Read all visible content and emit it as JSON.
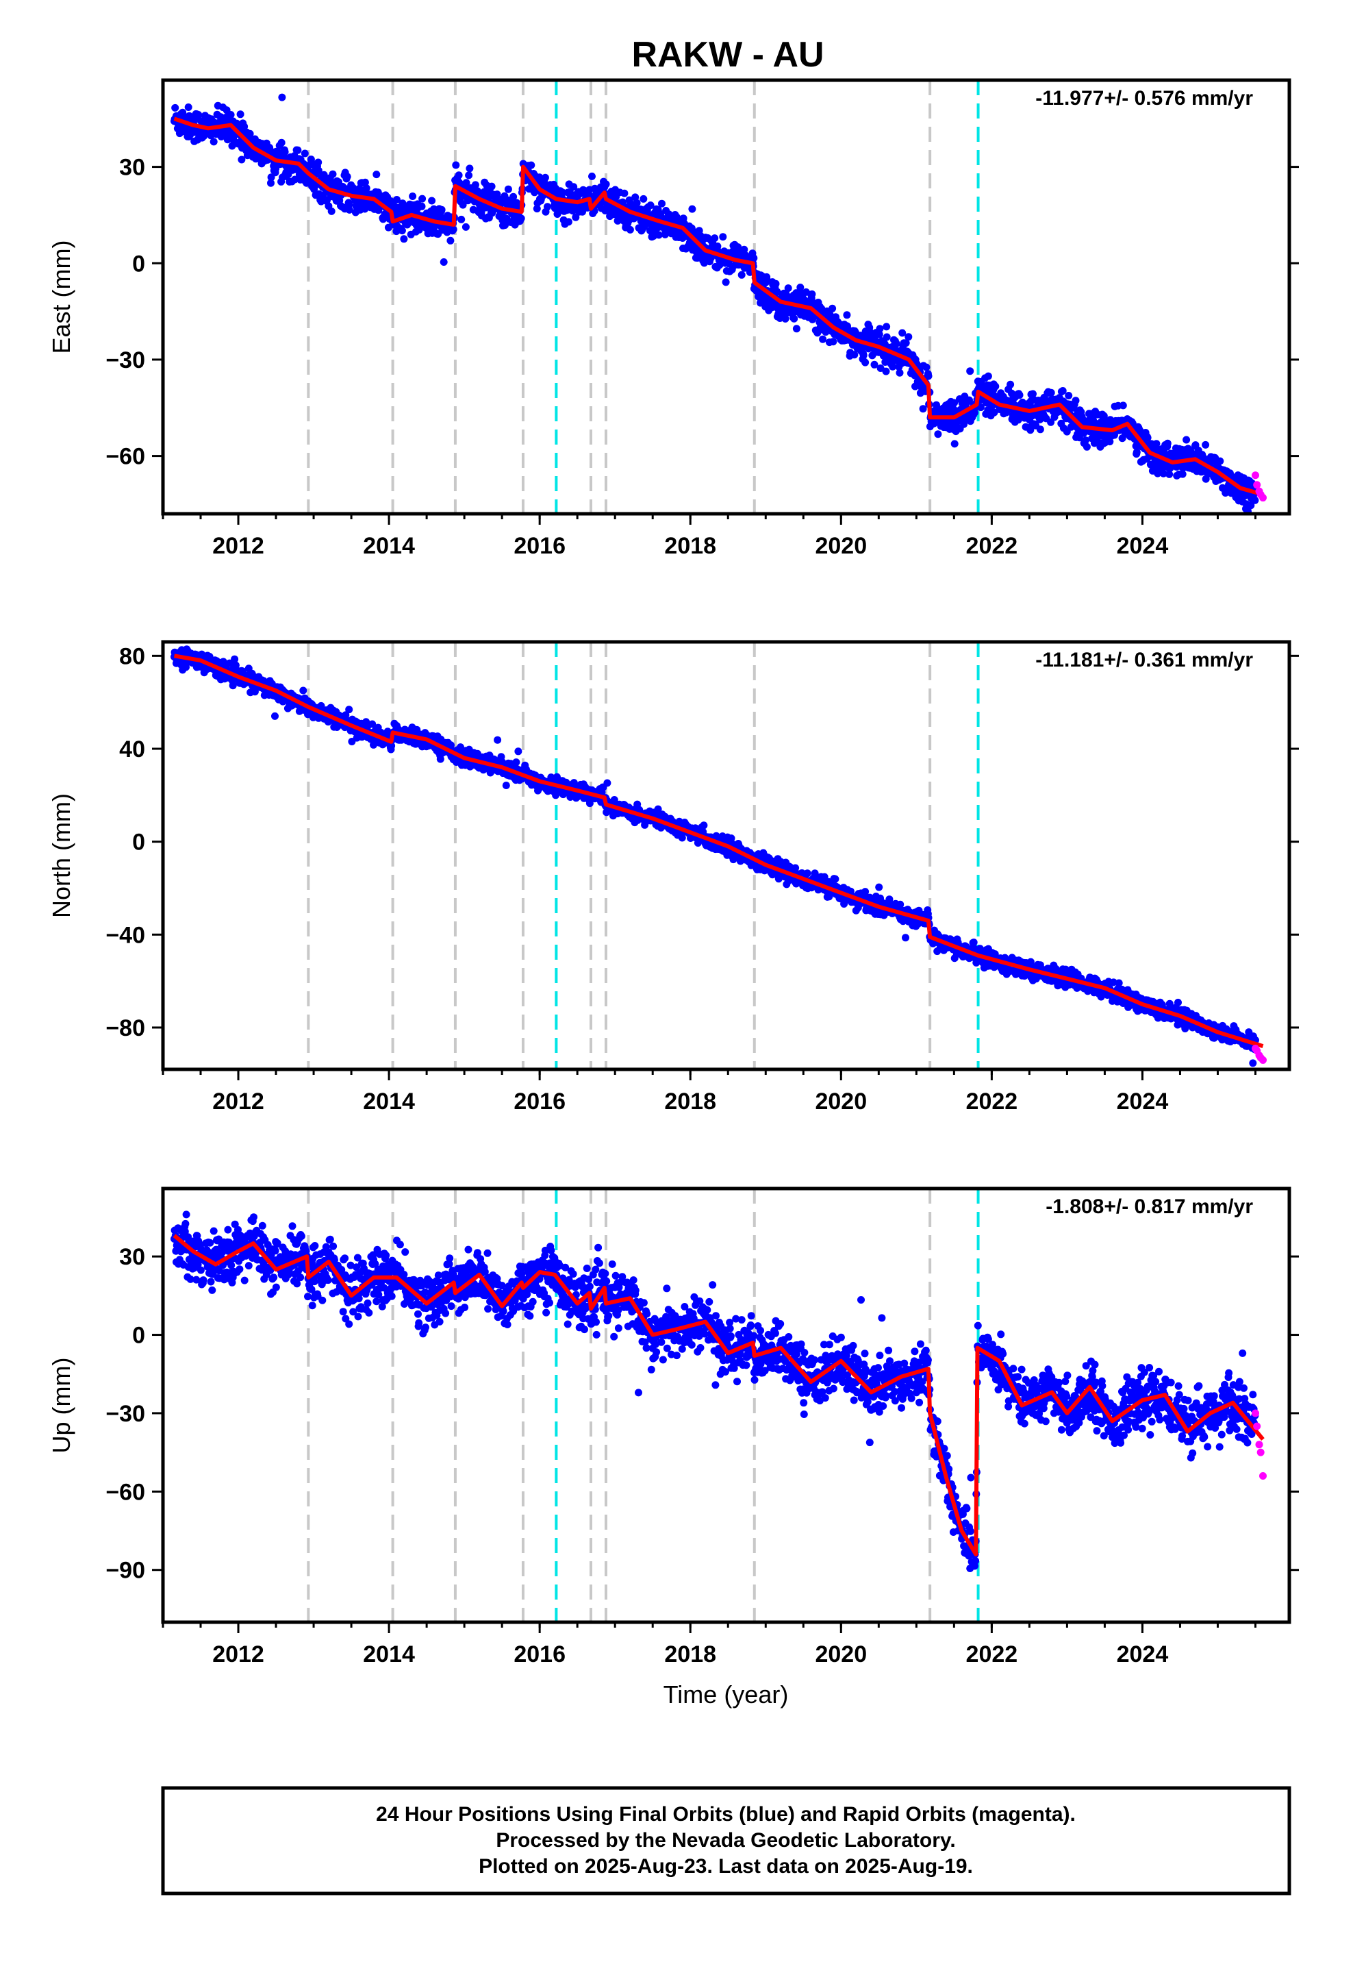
{
  "title": "RAKW - AU",
  "x_axis_label": "Time (year)",
  "footer": {
    "line1": "24 Hour Positions Using Final Orbits (blue) and Rapid Orbits (magenta).",
    "line2": "Processed by the Nevada Geodetic Laboratory.",
    "line3": "Plotted on 2025-Aug-23. Last data on 2025-Aug-19."
  },
  "colors": {
    "final_orbits": "#0000ff",
    "rapid_orbits": "#ff00ff",
    "model_fit": "#ff0000",
    "equipment_change": "#c8c8c8",
    "earthquake": "#00e5e5"
  },
  "chart_data": [
    {
      "type": "scatter",
      "ylabel": "East (mm)",
      "rate_label": "-11.977+/- 0.576 mm/yr",
      "xlim": [
        2011.0,
        2025.95
      ],
      "ylim": [
        -78,
        57
      ],
      "yticks": [
        -60,
        -30,
        0,
        30
      ],
      "xticks": [
        2012,
        2014,
        2016,
        2018,
        2020,
        2022,
        2024
      ],
      "x_minor_step": 0.5,
      "equipment_change_lines": [
        2012.93,
        2014.05,
        2014.88,
        2015.78,
        2016.68,
        2016.88,
        2018.85,
        2021.18
      ],
      "earthquake_lines": [
        2016.22,
        2021.82
      ],
      "model": {
        "x": [
          2011.15,
          2011.4,
          2011.6,
          2011.9,
          2012.2,
          2012.5,
          2012.8,
          2012.93,
          2013.2,
          2013.5,
          2013.8,
          2014.03,
          2014.05,
          2014.3,
          2014.6,
          2014.86,
          2014.88,
          2015.2,
          2015.5,
          2015.76,
          2015.78,
          2016.0,
          2016.22,
          2016.5,
          2016.66,
          2016.68,
          2016.86,
          2016.88,
          2017.2,
          2017.6,
          2017.9,
          2018.2,
          2018.6,
          2018.83,
          2018.85,
          2019.2,
          2019.6,
          2019.9,
          2020.2,
          2020.5,
          2020.9,
          2021.16,
          2021.18,
          2021.5,
          2021.8,
          2021.82,
          2022.1,
          2022.5,
          2022.9,
          2023.2,
          2023.6,
          2023.8,
          2024.1,
          2024.4,
          2024.7,
          2025.0,
          2025.3,
          2025.6
        ],
        "y": [
          45,
          43,
          42,
          43,
          36,
          32,
          31,
          28,
          23,
          21,
          20,
          16,
          13,
          15,
          13,
          12,
          24,
          20,
          17,
          16,
          30,
          23,
          20,
          19,
          20,
          17,
          22,
          20,
          16,
          13,
          11,
          4,
          1,
          0,
          -6,
          -12,
          -14,
          -20,
          -24,
          -26,
          -30,
          -38,
          -48,
          -48,
          -44,
          -40,
          -44,
          -46,
          -44,
          -51,
          -52,
          -50,
          -59,
          -62,
          -61,
          -65,
          -70,
          -72
        ]
      },
      "scatter_noise": 2.5,
      "rapid": {
        "x": [
          2025.5,
          2025.52,
          2025.55,
          2025.57,
          2025.6
        ],
        "y": [
          -66,
          -69,
          -71,
          -72,
          -73
        ]
      }
    },
    {
      "type": "scatter",
      "ylabel": "North (mm)",
      "rate_label": "-11.181+/- 0.361 mm/yr",
      "xlim": [
        2011.0,
        2025.95
      ],
      "ylim": [
        -98,
        86
      ],
      "yticks": [
        -80,
        -40,
        0,
        40,
        80
      ],
      "xticks": [
        2012,
        2014,
        2016,
        2018,
        2020,
        2022,
        2024
      ],
      "x_minor_step": 0.5,
      "equipment_change_lines": [
        2012.93,
        2014.05,
        2014.88,
        2015.78,
        2016.68,
        2016.88,
        2018.85,
        2021.18
      ],
      "earthquake_lines": [
        2016.22,
        2021.82
      ],
      "model": {
        "x": [
          2011.15,
          2011.5,
          2012.0,
          2012.5,
          2012.93,
          2013.5,
          2014.03,
          2014.05,
          2014.5,
          2015.0,
          2015.5,
          2016.0,
          2016.5,
          2016.86,
          2016.88,
          2017.5,
          2018.0,
          2018.5,
          2019.0,
          2019.5,
          2020.0,
          2020.5,
          2021.16,
          2021.18,
          2021.82,
          2022.5,
          2023.0,
          2023.5,
          2024.0,
          2024.5,
          2025.0,
          2025.6
        ],
        "y": [
          80,
          78,
          71,
          65,
          58,
          50,
          43,
          47,
          44,
          36,
          32,
          26,
          22,
          19,
          16,
          10,
          4,
          -2,
          -10,
          -16,
          -22,
          -28,
          -34,
          -41,
          -49,
          -55,
          -59,
          -63,
          -70,
          -75,
          -82,
          -88
        ]
      },
      "scatter_noise": 1.8,
      "rapid": {
        "x": [
          2025.5,
          2025.52,
          2025.55,
          2025.57,
          2025.6
        ],
        "y": [
          -89,
          -90,
          -92,
          -93,
          -94
        ]
      }
    },
    {
      "type": "scatter",
      "ylabel": "Up (mm)",
      "rate_label": "-1.808+/- 0.817 mm/yr",
      "xlim": [
        2011.0,
        2025.95
      ],
      "ylim": [
        -110,
        56
      ],
      "yticks": [
        -90,
        -60,
        -30,
        0,
        30
      ],
      "xticks": [
        2012,
        2014,
        2016,
        2018,
        2020,
        2022,
        2024
      ],
      "x_minor_step": 0.5,
      "equipment_change_lines": [
        2012.93,
        2014.05,
        2014.88,
        2015.78,
        2016.68,
        2016.88,
        2018.85,
        2021.18
      ],
      "earthquake_lines": [
        2016.22,
        2021.82
      ],
      "model": {
        "x": [
          2011.15,
          2011.4,
          2011.7,
          2012.0,
          2012.2,
          2012.5,
          2012.91,
          2012.93,
          2013.2,
          2013.5,
          2013.8,
          2014.1,
          2014.5,
          2014.86,
          2014.88,
          2015.2,
          2015.5,
          2015.76,
          2015.78,
          2016.0,
          2016.2,
          2016.5,
          2016.66,
          2016.68,
          2016.86,
          2016.88,
          2017.2,
          2017.5,
          2017.8,
          2018.2,
          2018.5,
          2018.83,
          2018.85,
          2019.2,
          2019.6,
          2020.0,
          2020.4,
          2020.8,
          2021.16,
          2021.18,
          2021.4,
          2021.6,
          2021.79,
          2021.81,
          2022.1,
          2022.4,
          2022.8,
          2023.0,
          2023.3,
          2023.6,
          2024.0,
          2024.3,
          2024.6,
          2024.9,
          2025.2,
          2025.6
        ],
        "y": [
          38,
          32,
          27,
          32,
          35,
          25,
          30,
          22,
          28,
          15,
          22,
          22,
          12,
          20,
          16,
          23,
          11,
          20,
          18,
          24,
          23,
          12,
          16,
          10,
          18,
          12,
          14,
          0,
          2,
          5,
          -7,
          -3,
          -8,
          -5,
          -18,
          -10,
          -22,
          -16,
          -13,
          -30,
          -55,
          -75,
          -84,
          -5,
          -10,
          -27,
          -22,
          -30,
          -20,
          -33,
          -25,
          -23,
          -37,
          -30,
          -26,
          -40
        ]
      },
      "scatter_noise": 5,
      "rapid": {
        "x": [
          2025.5,
          2025.52,
          2025.55,
          2025.57,
          2025.6
        ],
        "y": [
          -30,
          -35,
          -42,
          -45,
          -54
        ]
      }
    }
  ]
}
